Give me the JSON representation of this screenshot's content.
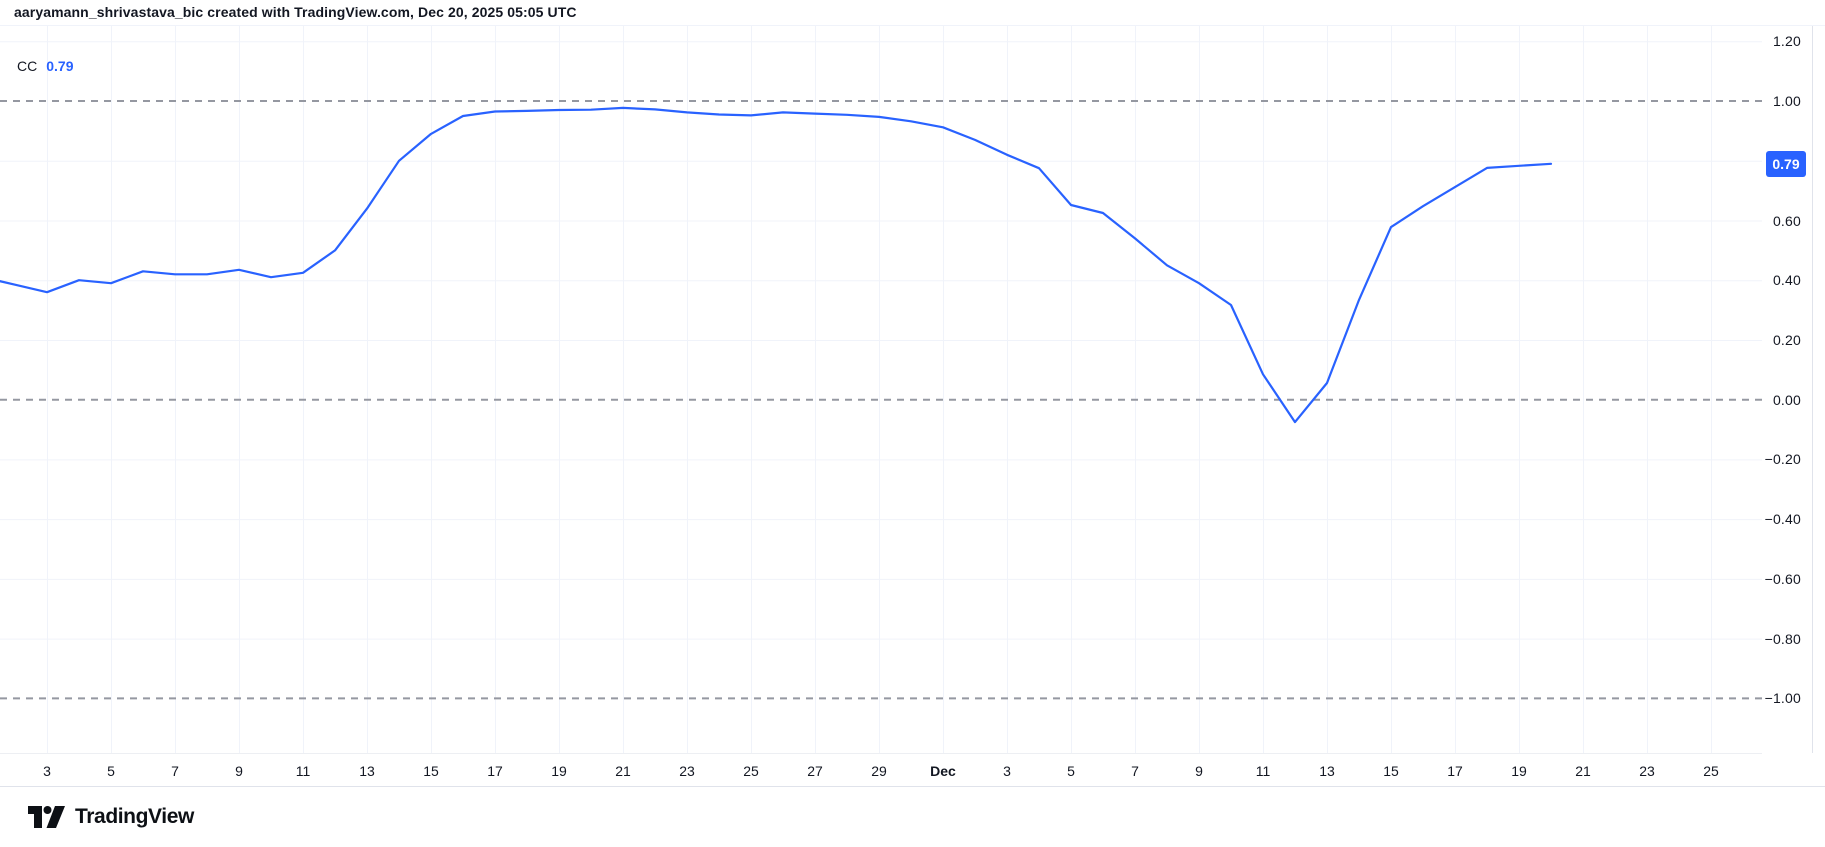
{
  "header": {
    "title": "aaryamann_shrivastava_bic created with TradingView.com, Dec 20, 2025 05:05 UTC"
  },
  "legend": {
    "indicator_abbr": "CC",
    "value": "0.79"
  },
  "price_scale": {
    "badge_value": "0.79"
  },
  "footer": {
    "brand": "TradingView"
  },
  "colors": {
    "line": "#2962FF",
    "badge_bg": "#2962FF",
    "badge_text": "#FFFFFF",
    "grid": "#F0F3FA",
    "dashed_level": "#9598A1",
    "axis_text": "#131722",
    "border": "#E0E3EB"
  },
  "chart_data": {
    "type": "line",
    "title": "CC (Correlation Coefficient)",
    "xlabel": "",
    "ylabel": "",
    "ylim": [
      -1.18,
      1.25
    ],
    "grid": true,
    "legend_position": "top-left",
    "y_ticks": [
      1.2,
      1.0,
      0.8,
      0.6,
      0.4,
      0.2,
      0.0,
      -0.2,
      -0.4,
      -0.6,
      -0.8,
      -1.0
    ],
    "y_tick_labels": [
      "1.20",
      "1.00",
      "0.80",
      "0.60",
      "0.40",
      "0.20",
      "0.00",
      "−0.20",
      "−0.40",
      "−0.60",
      "−0.80",
      "−1.00"
    ],
    "hidden_y_tick": 0.8,
    "dashed_levels": [
      1.0,
      0.0,
      -1.0
    ],
    "x_ticks": [
      {
        "label": "3",
        "i": 2,
        "emphasis": false
      },
      {
        "label": "5",
        "i": 4,
        "emphasis": false
      },
      {
        "label": "7",
        "i": 6,
        "emphasis": false
      },
      {
        "label": "9",
        "i": 8,
        "emphasis": false
      },
      {
        "label": "11",
        "i": 10,
        "emphasis": false
      },
      {
        "label": "13",
        "i": 12,
        "emphasis": false
      },
      {
        "label": "15",
        "i": 14,
        "emphasis": false
      },
      {
        "label": "17",
        "i": 16,
        "emphasis": false
      },
      {
        "label": "19",
        "i": 18,
        "emphasis": false
      },
      {
        "label": "21",
        "i": 20,
        "emphasis": false
      },
      {
        "label": "23",
        "i": 22,
        "emphasis": false
      },
      {
        "label": "25",
        "i": 24,
        "emphasis": false
      },
      {
        "label": "27",
        "i": 26,
        "emphasis": false
      },
      {
        "label": "29",
        "i": 28,
        "emphasis": false
      },
      {
        "label": "Dec",
        "i": 30,
        "emphasis": true
      },
      {
        "label": "3",
        "i": 32,
        "emphasis": false
      },
      {
        "label": "5",
        "i": 34,
        "emphasis": false
      },
      {
        "label": "7",
        "i": 36,
        "emphasis": false
      },
      {
        "label": "9",
        "i": 38,
        "emphasis": false
      },
      {
        "label": "11",
        "i": 40,
        "emphasis": false
      },
      {
        "label": "13",
        "i": 42,
        "emphasis": false
      },
      {
        "label": "15",
        "i": 44,
        "emphasis": false
      },
      {
        "label": "17",
        "i": 46,
        "emphasis": false
      },
      {
        "label": "19",
        "i": 48,
        "emphasis": false
      },
      {
        "label": "21",
        "i": 50,
        "emphasis": false
      },
      {
        "label": "23",
        "i": 52,
        "emphasis": false
      },
      {
        "label": "25",
        "i": 54,
        "emphasis": false
      }
    ],
    "last_value": 0.79,
    "series": [
      {
        "name": "CC",
        "color": "#2962FF",
        "points": [
          [
            "Nov 1",
            0.41
          ],
          [
            "Nov 2",
            0.385
          ],
          [
            "Nov 3",
            0.36
          ],
          [
            "Nov 4",
            0.4
          ],
          [
            "Nov 5",
            0.39
          ],
          [
            "Nov 6",
            0.43
          ],
          [
            "Nov 7",
            0.42
          ],
          [
            "Nov 8",
            0.42
          ],
          [
            "Nov 9",
            0.435
          ],
          [
            "Nov 10",
            0.41
          ],
          [
            "Nov 11",
            0.425
          ],
          [
            "Nov 12",
            0.5
          ],
          [
            "Nov 13",
            0.64
          ],
          [
            "Nov 14",
            0.8
          ],
          [
            "Nov 15",
            0.89
          ],
          [
            "Nov 16",
            0.95
          ],
          [
            "Nov 17",
            0.965
          ],
          [
            "Nov 18",
            0.967
          ],
          [
            "Nov 19",
            0.97
          ],
          [
            "Nov 20",
            0.971
          ],
          [
            "Nov 21",
            0.977
          ],
          [
            "Nov 22",
            0.972
          ],
          [
            "Nov 23",
            0.962
          ],
          [
            "Nov 24",
            0.955
          ],
          [
            "Nov 25",
            0.952
          ],
          [
            "Nov 26",
            0.962
          ],
          [
            "Nov 27",
            0.958
          ],
          [
            "Nov 28",
            0.954
          ],
          [
            "Nov 29",
            0.947
          ],
          [
            "Nov 30",
            0.932
          ],
          [
            "Dec 1",
            0.912
          ],
          [
            "Dec 2",
            0.87
          ],
          [
            "Dec 3",
            0.82
          ],
          [
            "Dec 4",
            0.775
          ],
          [
            "Dec 5",
            0.652
          ],
          [
            "Dec 6",
            0.625
          ],
          [
            "Dec 7",
            0.54
          ],
          [
            "Dec 8",
            0.45
          ],
          [
            "Dec 9",
            0.39
          ],
          [
            "Dec 10",
            0.317
          ],
          [
            "Dec 11",
            0.085
          ],
          [
            "Dec 12",
            -0.075
          ],
          [
            "Dec 13",
            0.056
          ],
          [
            "Dec 14",
            0.334
          ],
          [
            "Dec 15",
            0.578
          ],
          [
            "Dec 16",
            0.648
          ],
          [
            "Dec 17",
            0.712
          ],
          [
            "Dec 18",
            0.776
          ],
          [
            "Dec 19",
            0.783
          ],
          [
            "Dec 20",
            0.79
          ]
        ]
      }
    ]
  }
}
